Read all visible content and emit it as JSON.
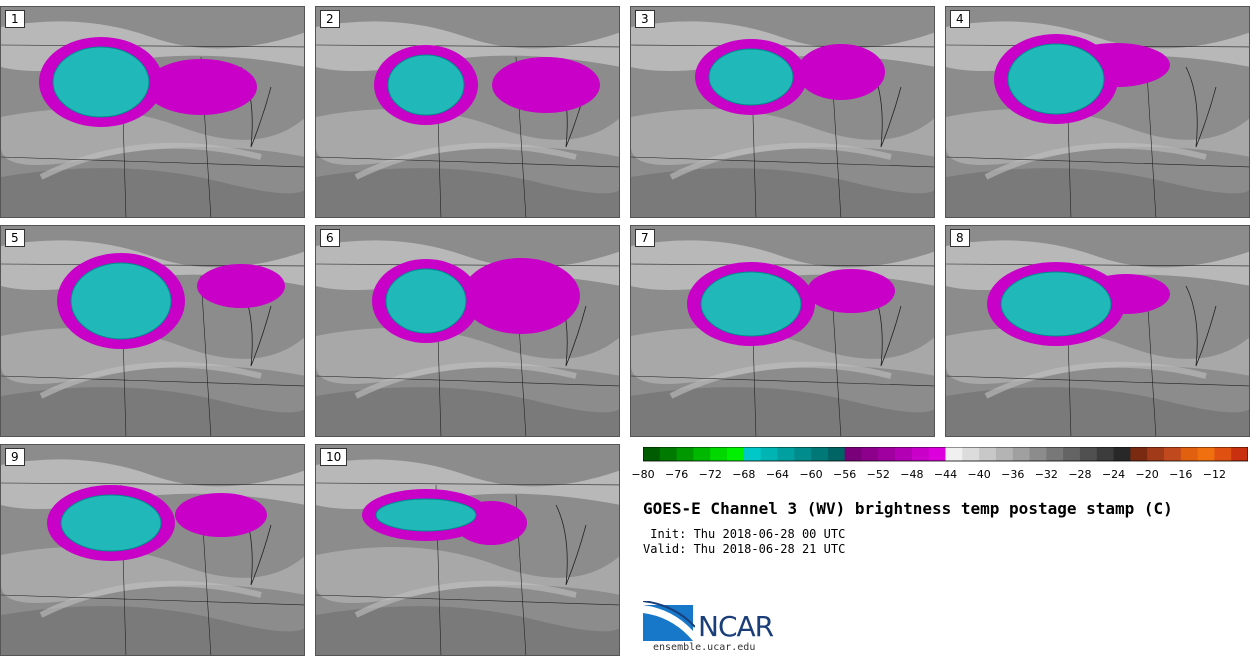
{
  "panels": [
    {
      "label": "1"
    },
    {
      "label": "2"
    },
    {
      "label": "3"
    },
    {
      "label": "4"
    },
    {
      "label": "5"
    },
    {
      "label": "6"
    },
    {
      "label": "7"
    },
    {
      "label": "8"
    },
    {
      "label": "9"
    },
    {
      "label": "10"
    }
  ],
  "colorbar": {
    "ticks": [
      "−80",
      "−76",
      "−72",
      "−68",
      "−64",
      "−60",
      "−56",
      "−52",
      "−48",
      "−44",
      "−40",
      "−36",
      "−32",
      "−28",
      "−24",
      "−20",
      "−16",
      "−12"
    ],
    "colors": [
      "#005c00",
      "#007a00",
      "#009800",
      "#00b800",
      "#00d800",
      "#00f000",
      "#00c8c8",
      "#00b4b4",
      "#00a0a0",
      "#008c8c",
      "#007878",
      "#006464",
      "#7a007a",
      "#8c008c",
      "#a000a0",
      "#b400b4",
      "#c800c8",
      "#dc00dc",
      "#f0f0f0",
      "#dcdcdc",
      "#c8c8c8",
      "#b4b4b4",
      "#a0a0a0",
      "#8c8c8c",
      "#787878",
      "#646464",
      "#505050",
      "#3c3c3c",
      "#282828",
      "#7a2a10",
      "#a03a18",
      "#c04a1e",
      "#e06010",
      "#f07010",
      "#e05010",
      "#c83010"
    ]
  },
  "title": "GOES-E Channel 3 (WV) brightness temp postage stamp (C)",
  "init": " Init: Thu 2018-06-28 00 UTC",
  "valid": "Valid: Thu 2018-06-28 21 UTC",
  "logo": {
    "name": "NCAR",
    "url": "ensemble.ucar.edu"
  }
}
